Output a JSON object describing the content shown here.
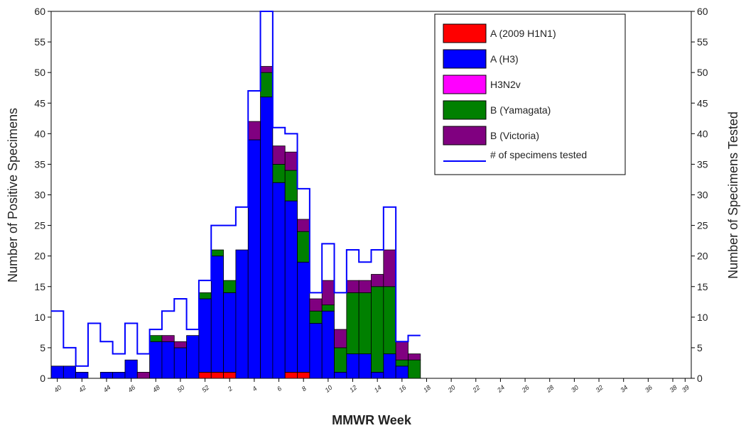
{
  "chart_data": {
    "type": "bar",
    "stacked": true,
    "xlabel": "MMWR Week",
    "ylabel": "Number of Positive Specimens",
    "y2label": "Number of Specimens Tested",
    "ylim": [
      0,
      60
    ],
    "y2lim": [
      0,
      60
    ],
    "yticks": [
      0,
      5,
      10,
      15,
      20,
      25,
      30,
      35,
      40,
      45,
      50,
      55,
      60
    ],
    "legend_position": "top-right",
    "weeks": [
      40,
      41,
      42,
      43,
      44,
      45,
      46,
      47,
      48,
      49,
      50,
      51,
      52,
      1,
      2,
      3,
      4,
      5,
      6,
      7,
      8,
      9,
      10,
      11,
      12,
      13,
      14,
      15,
      16,
      17,
      18,
      19,
      20,
      21,
      22,
      23,
      24,
      25,
      26,
      27,
      28,
      29,
      30,
      31,
      32,
      33,
      34,
      35,
      36,
      37,
      38,
      39
    ],
    "x_tick_labels": [
      "40",
      "42",
      "44",
      "46",
      "48",
      "50",
      "52",
      "2",
      "4",
      "6",
      "8",
      "10",
      "12",
      "14",
      "16",
      "18",
      "20",
      "22",
      "24",
      "26",
      "28",
      "30",
      "32",
      "34",
      "36",
      "38",
      "39"
    ],
    "series": [
      {
        "name": "A (2009 H1N1)",
        "color": "#ff0000",
        "values": [
          0,
          0,
          0,
          0,
          0,
          0,
          0,
          0,
          0,
          0,
          0,
          0,
          1,
          1,
          1,
          0,
          0,
          0,
          0,
          1,
          1,
          0,
          0,
          0,
          0,
          0,
          0,
          0,
          0,
          0,
          0,
          0,
          0,
          0,
          0,
          0,
          0,
          0,
          0,
          0,
          0,
          0,
          0,
          0,
          0,
          0,
          0,
          0,
          0,
          0,
          0,
          0
        ]
      },
      {
        "name": "A (H3)",
        "color": "#0000ff",
        "values": [
          2,
          2,
          1,
          0,
          1,
          1,
          3,
          0,
          6,
          6,
          5,
          7,
          12,
          19,
          13,
          21,
          39,
          46,
          32,
          28,
          18,
          9,
          11,
          1,
          4,
          4,
          1,
          4,
          2,
          0,
          0,
          0,
          0,
          0,
          0,
          0,
          0,
          0,
          0,
          0,
          0,
          0,
          0,
          0,
          0,
          0,
          0,
          0,
          0,
          0,
          0,
          0
        ]
      },
      {
        "name": "H3N2v",
        "color": "#ff00ff",
        "values": [
          0,
          0,
          0,
          0,
          0,
          0,
          0,
          0,
          0,
          0,
          0,
          0,
          0,
          0,
          0,
          0,
          0,
          0,
          0,
          0,
          0,
          0,
          0,
          0,
          0,
          0,
          0,
          0,
          0,
          0,
          0,
          0,
          0,
          0,
          0,
          0,
          0,
          0,
          0,
          0,
          0,
          0,
          0,
          0,
          0,
          0,
          0,
          0,
          0,
          0,
          0,
          0
        ]
      },
      {
        "name": "B (Yamagata)",
        "color": "#008000",
        "values": [
          0,
          0,
          0,
          0,
          0,
          0,
          0,
          0,
          1,
          0,
          0,
          0,
          1,
          1,
          2,
          0,
          0,
          4,
          3,
          5,
          5,
          2,
          1,
          4,
          10,
          10,
          14,
          11,
          1,
          3,
          0,
          0,
          0,
          0,
          0,
          0,
          0,
          0,
          0,
          0,
          0,
          0,
          0,
          0,
          0,
          0,
          0,
          0,
          0,
          0,
          0,
          0
        ]
      },
      {
        "name": "B (Victoria)",
        "color": "#800080",
        "values": [
          0,
          0,
          0,
          0,
          0,
          0,
          0,
          1,
          0,
          1,
          1,
          0,
          0,
          0,
          0,
          0,
          3,
          1,
          3,
          3,
          2,
          2,
          4,
          3,
          2,
          2,
          2,
          6,
          3,
          1,
          0,
          0,
          0,
          0,
          0,
          0,
          0,
          0,
          0,
          0,
          0,
          0,
          0,
          0,
          0,
          0,
          0,
          0,
          0,
          0,
          0,
          0
        ]
      }
    ],
    "tested": {
      "name": "# of specimens tested",
      "color": "#0000ff",
      "values": [
        11,
        5,
        2,
        9,
        6,
        4,
        9,
        4,
        8,
        11,
        13,
        8,
        16,
        25,
        25,
        28,
        47,
        60,
        41,
        40,
        31,
        14,
        22,
        14,
        21,
        19,
        21,
        28,
        6,
        7
      ]
    }
  }
}
